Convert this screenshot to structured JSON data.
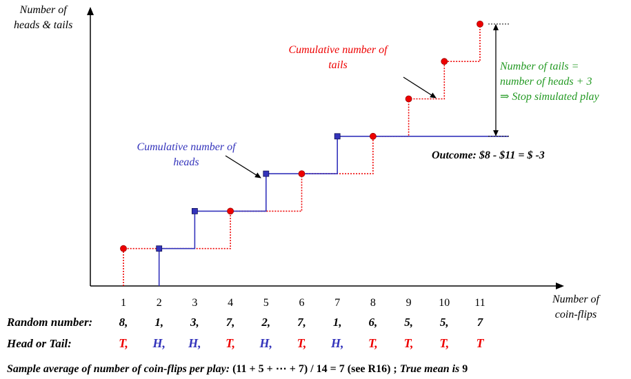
{
  "y_axis_label": [
    "Number of",
    "heads & tails"
  ],
  "x_axis_label": [
    "Number of",
    "coin-flips"
  ],
  "tails_label": [
    "Cumulative number of",
    "tails"
  ],
  "heads_label": [
    "Cumulative number of",
    "heads"
  ],
  "stop_label": [
    "Number of tails =",
    "number of heads + 3",
    "⇒ Stop simulated play"
  ],
  "outcome": "Outcome: $8 - $11 = $ -3",
  "random_number_label": "Random number:",
  "head_tail_label": "Head or Tail:",
  "footer": {
    "italic_part": "Sample average of number of coin-flips per play:",
    "formula": " (11 + 5 + ⋯ + 7) / 14 = 7 (see R16) ; ",
    "italic_end": "True mean is ",
    "end_value": "9"
  },
  "colors": {
    "heads": "#3333bb",
    "tails": "#ee0000",
    "stop": "#229922",
    "axis": "#000000"
  },
  "chart_data": {
    "type": "line",
    "x_ticks": [
      1,
      2,
      3,
      4,
      5,
      6,
      7,
      8,
      9,
      10,
      11
    ],
    "random_numbers": [
      "8,",
      "1,",
      "3,",
      "7,",
      "2,",
      "7,",
      "1,",
      "6,",
      "5,",
      "5,",
      "7"
    ],
    "flips": [
      "T,",
      "H,",
      "H,",
      "T,",
      "H,",
      "T,",
      "H,",
      "T,",
      "T,",
      "T,",
      "T"
    ],
    "flip_types": [
      "T",
      "H",
      "H",
      "T",
      "H",
      "T",
      "H",
      "T",
      "T",
      "T",
      "T"
    ],
    "series": [
      {
        "name": "Cumulative number of tails",
        "x": [
          1,
          4,
          6,
          8,
          9,
          10,
          11
        ],
        "y": [
          1,
          2,
          3,
          4,
          5,
          6,
          7
        ]
      },
      {
        "name": "Cumulative number of heads",
        "x": [
          2,
          3,
          5,
          7
        ],
        "y": [
          1,
          2,
          3,
          4
        ]
      }
    ],
    "xlim": [
      0,
      12
    ],
    "ylim": [
      0,
      7.5
    ]
  }
}
